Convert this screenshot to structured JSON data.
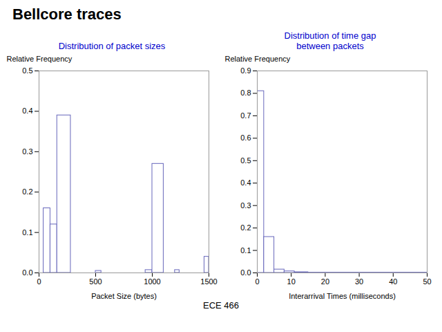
{
  "title": "Bellcore traces",
  "footer": "ECE 466",
  "chart_data": [
    {
      "type": "bar",
      "title": "Distribution of packet sizes",
      "xlabel": "Packet Size (bytes)",
      "ylabel": "Relative Frequency",
      "x": [
        0,
        40,
        100,
        160,
        380,
        500,
        600,
        940,
        1000,
        1100,
        1200,
        1460
      ],
      "widths": [
        40,
        60,
        60,
        120,
        60,
        50,
        40,
        60,
        100,
        40,
        40,
        40
      ],
      "values": [
        0.0,
        0.16,
        0.12,
        0.39,
        0.0,
        0.005,
        0.0,
        0.007,
        0.27,
        0.0,
        0.007,
        0.04
      ],
      "color": "#6666bb",
      "xlim": [
        0,
        1500
      ],
      "xticks": [
        0,
        500,
        1000,
        1500
      ],
      "ylim": [
        0,
        0.5
      ],
      "yticks": [
        {
          "value": 0,
          "label": "0.0"
        },
        0.1,
        0.2,
        0.3,
        0.4,
        0.5
      ],
      "grid": false
    },
    {
      "type": "bar",
      "title": "Distribution of time gap\nbetween packets",
      "xlabel": "Interarrival Times (milliseconds)",
      "ylabel": "Relative Frequency",
      "x": [
        0,
        2,
        5,
        8,
        11,
        15,
        20
      ],
      "widths": [
        2,
        3,
        3,
        3,
        4,
        5,
        30
      ],
      "values": [
        0.81,
        0.16,
        0.015,
        0.007,
        0.003,
        0.001,
        0.001
      ],
      "color": "#6666bb",
      "xlim": [
        0,
        50
      ],
      "xticks": [
        0,
        10,
        20,
        30,
        40,
        50
      ],
      "ylim": [
        0,
        0.9
      ],
      "yticks": [
        {
          "value": 0,
          "label": "0.0"
        },
        0.1,
        0.2,
        0.3,
        0.4,
        0.5,
        0.6,
        0.7,
        0.8,
        0.9
      ],
      "grid": false
    }
  ]
}
